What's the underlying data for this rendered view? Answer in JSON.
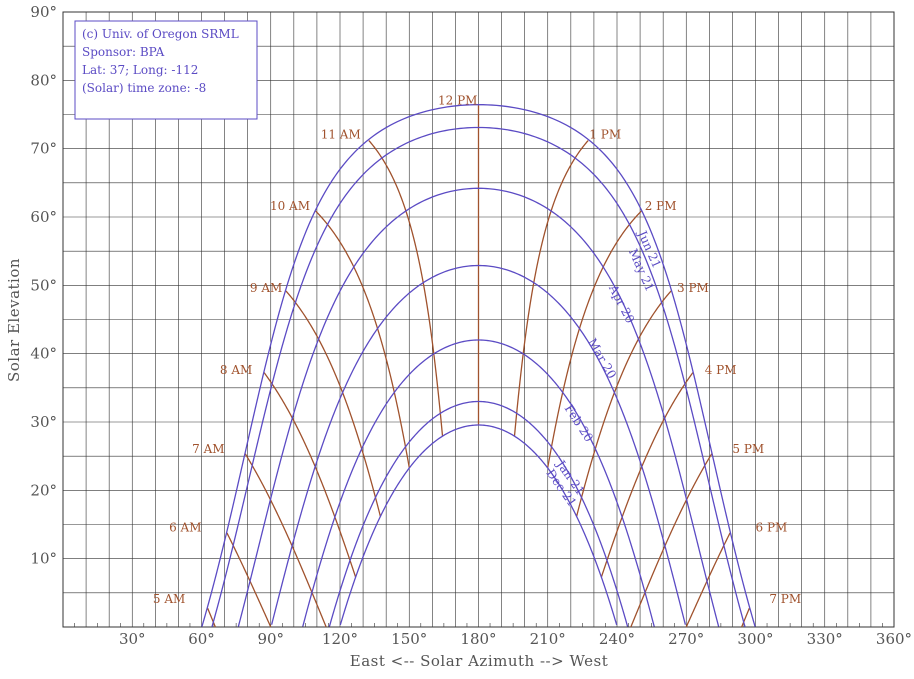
{
  "chart_data": {
    "type": "line",
    "ylabel": "Solar Elevation",
    "xlabel": "East <-- Solar Azimuth --> West",
    "xlim": [
      0,
      360
    ],
    "ylim": [
      0,
      90
    ],
    "x_ticks": [
      {
        "value": 30,
        "label": "30°"
      },
      {
        "value": 60,
        "label": "60°"
      },
      {
        "value": 90,
        "label": "90°"
      },
      {
        "value": 120,
        "label": "120°"
      },
      {
        "value": 150,
        "label": "150°"
      },
      {
        "value": 180,
        "label": "180°"
      },
      {
        "value": 210,
        "label": "210°"
      },
      {
        "value": 240,
        "label": "240°"
      },
      {
        "value": 270,
        "label": "270°"
      },
      {
        "value": 300,
        "label": "300°"
      },
      {
        "value": 330,
        "label": "330°"
      },
      {
        "value": 360,
        "label": "360°"
      }
    ],
    "y_ticks": [
      {
        "value": 10,
        "label": "10°"
      },
      {
        "value": 20,
        "label": "20°"
      },
      {
        "value": 30,
        "label": "30°"
      },
      {
        "value": 40,
        "label": "40°"
      },
      {
        "value": 50,
        "label": "50°"
      },
      {
        "value": 60,
        "label": "60°"
      },
      {
        "value": 70,
        "label": "70°"
      },
      {
        "value": 80,
        "label": "80°"
      },
      {
        "value": 90,
        "label": "90°"
      }
    ],
    "grid": true,
    "info_box": [
      "(c) Univ. of Oregon SRML",
      "Sponsor: BPA",
      "Lat: 37; Long: -112",
      "(Solar) time zone: -8"
    ],
    "latitude": 37,
    "date_curves": [
      {
        "label": "Jun 21",
        "declination": 23.44,
        "label_pos": [
          252.5,
          55
        ],
        "rot": 66
      },
      {
        "label": "May 21",
        "declination": 20.1,
        "label_pos": [
          249,
          52
        ],
        "rot": 66
      },
      {
        "label": "Apr 20",
        "declination": 11.2,
        "label_pos": [
          240.5,
          47
        ],
        "rot": 63
      },
      {
        "label": "Mar 20",
        "declination": -0.1,
        "label_pos": [
          232,
          39
        ],
        "rot": 60
      },
      {
        "label": "Feb 20",
        "declination": -11.0,
        "label_pos": [
          222,
          29.5
        ],
        "rot": 57
      },
      {
        "label": "Jan 21",
        "declination": -20.0,
        "label_pos": [
          218.5,
          21.5
        ],
        "rot": 55
      },
      {
        "label": "Dec 21",
        "declination": -23.44,
        "label_pos": [
          214.5,
          20
        ],
        "rot": 55
      }
    ],
    "hour_lines": [
      {
        "label": "5 AM",
        "hour_angle": -105,
        "label_pos": [
          53,
          3.5
        ],
        "anchor": "end"
      },
      {
        "label": "6 AM",
        "hour_angle": -90,
        "label_pos": [
          60,
          14
        ],
        "anchor": "end"
      },
      {
        "label": "7 AM",
        "hour_angle": -75,
        "label_pos": [
          70,
          25.5
        ],
        "anchor": "end"
      },
      {
        "label": "8 AM",
        "hour_angle": -60,
        "label_pos": [
          82,
          37
        ],
        "anchor": "end"
      },
      {
        "label": "9 AM",
        "hour_angle": -45,
        "label_pos": [
          95,
          49
        ],
        "anchor": "end"
      },
      {
        "label": "10 AM",
        "hour_angle": -30,
        "label_pos": [
          107,
          61
        ],
        "anchor": "end"
      },
      {
        "label": "11 AM",
        "hour_angle": -15,
        "label_pos": [
          129,
          71.5
        ],
        "anchor": "end"
      },
      {
        "label": "12 PM",
        "hour_angle": 0,
        "label_pos": [
          171,
          76.5
        ],
        "anchor": "middle"
      },
      {
        "label": "1 PM",
        "hour_angle": 15,
        "label_pos": [
          228,
          71.5
        ],
        "anchor": "start"
      },
      {
        "label": "2 PM",
        "hour_angle": 30,
        "label_pos": [
          252,
          61
        ],
        "anchor": "start"
      },
      {
        "label": "3 PM",
        "hour_angle": 45,
        "label_pos": [
          266,
          49
        ],
        "anchor": "start"
      },
      {
        "label": "4 PM",
        "hour_angle": 60,
        "label_pos": [
          278,
          37
        ],
        "anchor": "start"
      },
      {
        "label": "5 PM",
        "hour_angle": 75,
        "label_pos": [
          290,
          25.5
        ],
        "anchor": "start"
      },
      {
        "label": "6 PM",
        "hour_angle": 90,
        "label_pos": [
          300,
          14
        ],
        "anchor": "start"
      },
      {
        "label": "7 PM",
        "hour_angle": 105,
        "label_pos": [
          306,
          3.5
        ],
        "anchor": "start"
      }
    ],
    "colors": {
      "date_curve": "#5b4bc4",
      "hour_line": "#a0522d",
      "grid": "#333333",
      "axis": "#333333",
      "text": "#555555"
    }
  }
}
